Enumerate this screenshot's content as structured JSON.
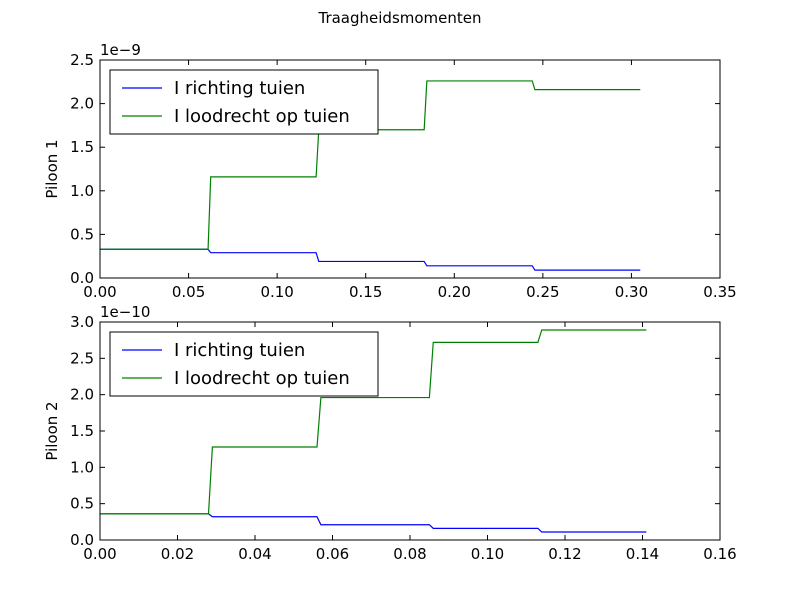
{
  "figure": {
    "title": "Traagheidsmomenten"
  },
  "chart_data": [
    {
      "type": "line",
      "ylabel": "Piloon 1",
      "offset_text": "1e−9",
      "scale": 1e-09,
      "xlim": [
        0,
        0.35
      ],
      "ylim": [
        0,
        2.5
      ],
      "xticks": [
        0,
        0.05,
        0.1,
        0.15,
        0.2,
        0.25,
        0.3,
        0.35
      ],
      "xtick_labels": [
        "0.00",
        "0.05",
        "0.10",
        "0.15",
        "0.20",
        "0.25",
        "0.30",
        "0.35"
      ],
      "yticks": [
        0,
        0.5,
        1.0,
        1.5,
        2.0,
        2.5
      ],
      "ytick_labels": [
        "0.0",
        "0.5",
        "1.0",
        "1.5",
        "2.0",
        "2.5"
      ],
      "legend_position": "top-left",
      "series": [
        {
          "name": "I richting tuien",
          "color": "#0000ff",
          "x": [
            0,
            0.061,
            0.0625,
            0.122,
            0.1235,
            0.183,
            0.1845,
            0.244,
            0.2455,
            0.305
          ],
          "y": [
            0.33,
            0.33,
            0.29,
            0.29,
            0.19,
            0.19,
            0.14,
            0.14,
            0.09,
            0.09
          ]
        },
        {
          "name": "I loodrecht op tuien",
          "color": "#008000",
          "x": [
            0,
            0.061,
            0.0625,
            0.122,
            0.1235,
            0.183,
            0.1845,
            0.244,
            0.2455,
            0.305
          ],
          "y": [
            0.33,
            0.33,
            1.16,
            1.16,
            1.7,
            1.7,
            2.26,
            2.26,
            2.16,
            2.16
          ]
        }
      ]
    },
    {
      "type": "line",
      "ylabel": "Piloon 2",
      "offset_text": "1e−10",
      "scale": 1e-10,
      "xlim": [
        0,
        0.16
      ],
      "ylim": [
        0,
        3.0
      ],
      "xticks": [
        0,
        0.02,
        0.04,
        0.06,
        0.08,
        0.1,
        0.12,
        0.14,
        0.16
      ],
      "xtick_labels": [
        "0.00",
        "0.02",
        "0.04",
        "0.06",
        "0.08",
        "0.10",
        "0.12",
        "0.14",
        "0.16"
      ],
      "yticks": [
        0,
        0.5,
        1.0,
        1.5,
        2.0,
        2.5,
        3.0
      ],
      "ytick_labels": [
        "0.0",
        "0.5",
        "1.0",
        "1.5",
        "2.0",
        "2.5",
        "3.0"
      ],
      "legend_position": "top-left",
      "series": [
        {
          "name": "I richting tuien",
          "color": "#0000ff",
          "x": [
            0,
            0.028,
            0.029,
            0.056,
            0.057,
            0.085,
            0.086,
            0.113,
            0.114,
            0.141
          ],
          "y": [
            0.36,
            0.36,
            0.32,
            0.32,
            0.21,
            0.21,
            0.16,
            0.16,
            0.11,
            0.11
          ]
        },
        {
          "name": "I loodrecht op tuien",
          "color": "#008000",
          "x": [
            0,
            0.028,
            0.029,
            0.056,
            0.057,
            0.085,
            0.086,
            0.113,
            0.114,
            0.141
          ],
          "y": [
            0.36,
            0.36,
            1.28,
            1.28,
            1.96,
            1.96,
            2.72,
            2.72,
            2.89,
            2.89
          ]
        }
      ]
    }
  ]
}
